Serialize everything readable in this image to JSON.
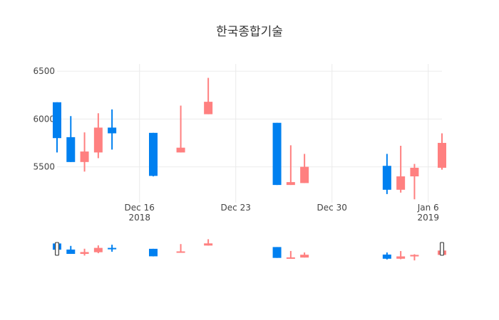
{
  "chart_data": {
    "type": "candlestick",
    "title": "한국종합기술",
    "increasing_color": "#FF8080",
    "decreasing_color": "#0080F0",
    "grid": true,
    "range_slider": true,
    "xlabel": "",
    "ylabel": "",
    "ylim": [
      5125,
      6575
    ],
    "xlim": [
      "2018-12-10",
      "2019-01-07"
    ],
    "yticks": [
      5500,
      6000,
      6500
    ],
    "xticks": [
      {
        "date": "2018-12-16",
        "label": "Dec 16",
        "sub": "2018"
      },
      {
        "date": "2018-12-23",
        "label": "Dec 23",
        "sub": ""
      },
      {
        "date": "2018-12-30",
        "label": "Dec 30",
        "sub": ""
      },
      {
        "date": "2019-01-06",
        "label": "Jan 6",
        "sub": "2019"
      }
    ],
    "x": [
      "2018-12-10",
      "2018-12-11",
      "2018-12-12",
      "2018-12-13",
      "2018-12-14",
      "2018-12-17",
      "2018-12-19",
      "2018-12-21",
      "2018-12-26",
      "2018-12-27",
      "2018-12-28",
      "2019-01-03",
      "2019-01-04",
      "2019-01-05",
      "2019-01-07"
    ],
    "open": [
      6175,
      5810,
      5550,
      5650,
      5910,
      5855,
      5650,
      6050,
      5960,
      5310,
      5330,
      5510,
      5260,
      5400,
      5490
    ],
    "high": [
      6175,
      6030,
      5860,
      6060,
      6100,
      5855,
      6140,
      6430,
      5960,
      5725,
      5635,
      5635,
      5720,
      5530,
      5850
    ],
    "low": [
      5650,
      5550,
      5450,
      5590,
      5680,
      5400,
      5650,
      6050,
      5310,
      5310,
      5330,
      5215,
      5230,
      5160,
      5470
    ],
    "close": [
      5800,
      5550,
      5660,
      5910,
      5850,
      5405,
      5700,
      6180,
      5310,
      5340,
      5500,
      5260,
      5400,
      5490,
      5750
    ]
  }
}
